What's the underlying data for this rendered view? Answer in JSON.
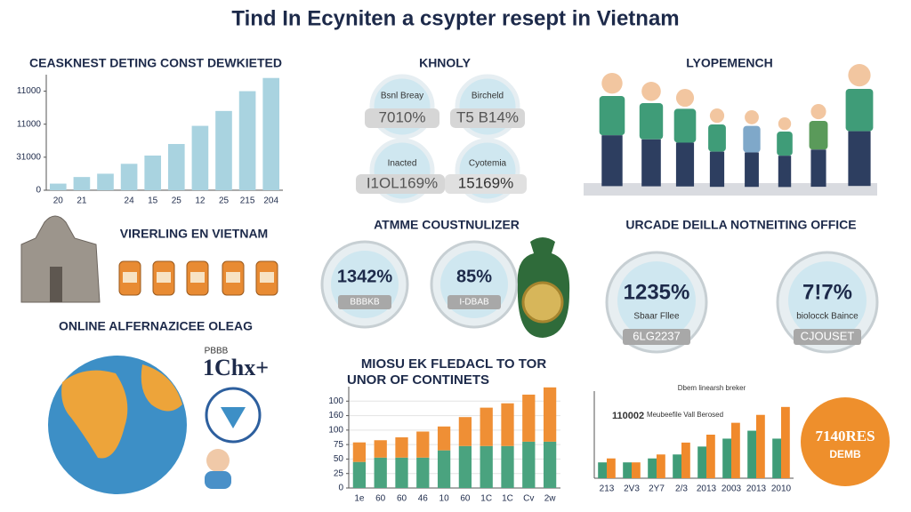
{
  "title": "Tind In Ecyniten a csypter resept in Vietnam",
  "stats_panel": {
    "heading": "KHNOLY",
    "items": [
      {
        "label": "Bsnl Breay",
        "value": "7010%"
      },
      {
        "label": "Bircheld",
        "value": "T5 B14%"
      },
      {
        "label": "Inacted",
        "value": "I1OL169%"
      },
      {
        "label": "Cyotemia",
        "value": "15169%"
      }
    ]
  },
  "people_panel": {
    "heading": "LYOPEMENCH"
  },
  "heritage_panel": {
    "heading": "VIRERLING EN VIETNAM"
  },
  "consumer_panel": {
    "heading": "ATMME COUSTNULIZER",
    "items": [
      {
        "value": "1342%",
        "label": "BBBKB"
      },
      {
        "value": "85%",
        "label": "I-DBAB"
      }
    ]
  },
  "office_panel": {
    "heading": "URCADE DEILLA NOTNEITING OFFICE",
    "items": [
      {
        "value": "1235%",
        "label": "Sbaar Fllee",
        "code": "6LG2237"
      },
      {
        "value": "7!7%",
        "label": "biolocck Baince",
        "code": "CJOUSET"
      }
    ]
  },
  "online_panel": {
    "heading": "ONLINE ALFERNAZICEE OLEAG",
    "caption": "PBBB",
    "value": "1Chx+"
  },
  "badge": {
    "value": "7140RES",
    "label": "DEMB"
  },
  "chart_data": [
    {
      "type": "bar",
      "title": "CEASKNEST DETING CONST DEWKIETED",
      "categories": [
        "20",
        "21",
        null,
        "24",
        "15",
        "25",
        "12",
        "25",
        "215",
        "204"
      ],
      "series": [
        {
          "color": "#a9d3e0",
          "values": [
            0.2,
            0.4,
            0.5,
            0.8,
            1.05,
            1.4,
            1.95,
            2.4,
            3.0,
            3.4
          ]
        }
      ],
      "ylim": [
        0,
        3.5
      ],
      "yticks": [
        0,
        {
          "value": 1,
          "label": "31000"
        },
        {
          "value": 2,
          "label": "11000"
        },
        {
          "value": 3,
          "label": "11000"
        }
      ],
      "grid": false,
      "stacked": false
    },
    {
      "type": "bar",
      "title": [
        "MIOSU EK FLEDACL TO TOR",
        "UNOR OF CONTINETS"
      ],
      "categories": [
        "1e",
        "60",
        "60",
        "46",
        "10",
        "60",
        "1C",
        "1C",
        "Cv",
        "2w"
      ],
      "series": [
        {
          "color": "#4aa37f",
          "values": [
            1.8,
            2.1,
            2.1,
            2.1,
            2.6,
            2.9,
            2.9,
            2.9,
            3.2,
            3.2
          ]
        },
        {
          "color": "#ef8f35",
          "values": [
            1.35,
            1.2,
            1.4,
            1.8,
            1.65,
            2.0,
            2.65,
            2.95,
            3.25,
            3.75
          ]
        }
      ],
      "ylim": [
        0,
        7
      ],
      "yticks": [
        0,
        {
          "value": 1,
          "label": "25"
        },
        {
          "value": 2,
          "label": "50"
        },
        {
          "value": 3,
          "label": "75"
        },
        {
          "value": 4,
          "label": "100"
        },
        {
          "value": 5,
          "label": "160"
        },
        {
          "value": 6,
          "label": "100"
        }
      ],
      "grid": true,
      "stacked": true
    },
    {
      "type": "bar",
      "annotations": [
        "110002",
        "Dbem linearsh breker",
        "Meubeefile Vall Berosed"
      ],
      "categories": [
        "213",
        "2V3",
        "2Y7",
        "2/3",
        "2013",
        "2003",
        "2013",
        "2010"
      ],
      "series": [
        {
          "color": "#3f9c78",
          "values": [
            2,
            2,
            2.5,
            3,
            4,
            5,
            6,
            5
          ]
        },
        {
          "color": "#f08a2c",
          "values": [
            2.5,
            2,
            3,
            4.5,
            5.5,
            7,
            8,
            9
          ]
        }
      ],
      "ylim": [
        0,
        11
      ],
      "yticks": [],
      "grid": false,
      "stacked": false
    }
  ]
}
